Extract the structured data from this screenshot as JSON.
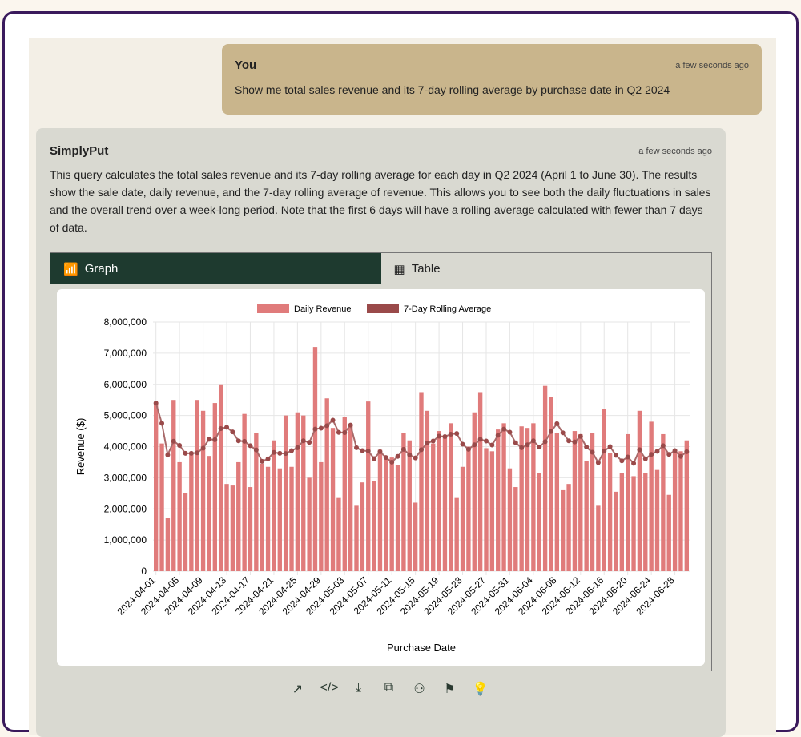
{
  "user_message": {
    "author": "You",
    "time": "a few seconds ago",
    "text": "Show me total sales revenue and its 7-day rolling average by purchase date in Q2 2024"
  },
  "bot_message": {
    "author": "SimplyPut",
    "time": "a few seconds ago",
    "text": "This query calculates the total sales revenue and its 7-day rolling average for each day in Q2 2024 (April 1 to June 30). The results show the sale date, daily revenue, and the 7-day rolling average of revenue. This allows you to see both the daily fluctuations in sales and the overall trend over a week-long period. Note that the first 6 days will have a rolling average calculated with fewer than 7 days of data."
  },
  "tabs": [
    {
      "label": "Graph",
      "icon": "bar-chart-icon",
      "active": true
    },
    {
      "label": "Table",
      "icon": "table-icon",
      "active": false
    }
  ],
  "actions": [
    {
      "name": "open-external",
      "glyph": "↗"
    },
    {
      "name": "code",
      "glyph": "</>"
    },
    {
      "name": "download",
      "glyph": "⤓"
    },
    {
      "name": "copy",
      "glyph": "⧉"
    },
    {
      "name": "user-share",
      "glyph": "⚇"
    },
    {
      "name": "flag",
      "glyph": "⚑"
    },
    {
      "name": "lightbulb",
      "glyph": "💡"
    }
  ],
  "colors": {
    "bar": "#e07b7b",
    "line": "#9a4a4a",
    "active_tab": "#1e3a2f"
  },
  "chart_data": {
    "type": "bar",
    "title": "",
    "xlabel": "Purchase Date",
    "ylabel": "Revenue ($)",
    "ylim": [
      0,
      8000000
    ],
    "yticks": [
      "0",
      "1,000,000",
      "2,000,000",
      "3,000,000",
      "4,000,000",
      "5,000,000",
      "6,000,000",
      "7,000,000",
      "8,000,000"
    ],
    "start_date": "2024-04-01",
    "xtick_labels": [
      "2024-04-01",
      "2024-04-05",
      "2024-04-09",
      "2024-04-13",
      "2024-04-17",
      "2024-04-21",
      "2024-04-25",
      "2024-04-29",
      "2024-05-03",
      "2024-05-07",
      "2024-05-11",
      "2024-05-15",
      "2024-05-19",
      "2024-05-23",
      "2024-05-27",
      "2024-05-31",
      "2024-06-04",
      "2024-06-08",
      "2024-06-12",
      "2024-06-16",
      "2024-06-20",
      "2024-06-24",
      "2024-06-28"
    ],
    "legend": [
      "Daily Revenue",
      "7-Day Rolling Average"
    ],
    "legend_position": "top-center",
    "grid": true,
    "rolling_window": 7,
    "series": [
      {
        "name": "Daily Revenue",
        "type": "bar",
        "values": [
          5400000,
          4100000,
          1700000,
          5500000,
          3500000,
          2500000,
          3800000,
          5500000,
          5150000,
          3700000,
          5400000,
          6000000,
          2800000,
          2750000,
          3500000,
          5050000,
          2700000,
          4450000,
          3450000,
          3350000,
          4200000,
          3300000,
          5000000,
          3350000,
          5100000,
          5000000,
          3000000,
          7200000,
          3500000,
          5550000,
          4600000,
          2350000,
          4950000,
          4700000,
          2100000,
          2850000,
          5450000,
          2900000,
          3900000,
          3650000,
          3650000,
          3400000,
          4450000,
          4200000,
          2200000,
          5750000,
          5150000,
          4100000,
          4500000,
          4350000,
          4750000,
          2350000,
          3350000,
          4000000,
          5100000,
          5750000,
          3950000,
          3850000,
          4550000,
          4750000,
          3300000,
          2700000,
          4650000,
          4600000,
          4750000,
          3150000,
          5950000,
          5600000,
          4450000,
          2600000,
          2800000,
          4500000,
          4400000,
          3550000,
          4450000,
          2100000,
          5200000,
          3800000,
          2550000,
          3150000,
          4400000,
          3050000,
          5150000,
          3150000,
          4800000,
          3250000,
          4400000,
          2450000,
          3900000,
          3850000,
          4200000
        ]
      }
    ]
  }
}
